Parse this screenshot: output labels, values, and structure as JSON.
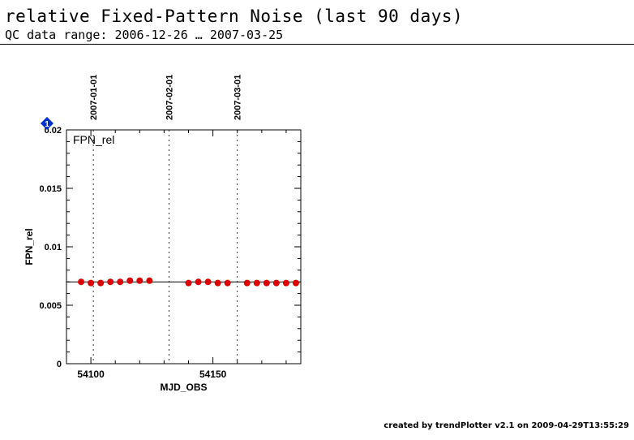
{
  "page": {
    "title": "relative Fixed-Pattern Noise (last 90 days)",
    "subtitle": "QC data range: 2006-12-26 … 2007-03-25",
    "footer": "created by trendPlotter v2.1 on 2009-04-29T13:55:29"
  },
  "colors": {
    "points": "#dd0000",
    "marker": "#0033cc",
    "axis": "#000000"
  },
  "chart_data": {
    "type": "scatter",
    "xlabel": "MJD_OBS",
    "ylabel": "FPN_rel",
    "panel_label": "FPN_rel",
    "xlim": [
      54090,
      54186
    ],
    "ylim": [
      0,
      0.02
    ],
    "x_ticks": [
      54100,
      54150
    ],
    "y_ticks": [
      {
        "value": 0,
        "label": "0"
      },
      {
        "value": 0.005,
        "label": "0.005"
      },
      {
        "value": 0.01,
        "label": "0.01"
      },
      {
        "value": 0.015,
        "label": "0.015"
      },
      {
        "value": 0.02,
        "label": "0.02"
      }
    ],
    "reference_line": 0.007,
    "date_markers": [
      {
        "x": 54101,
        "label": "2007-01-01"
      },
      {
        "x": 54132,
        "label": "2007-02-01"
      },
      {
        "x": 54160,
        "label": "2007-03-01"
      }
    ],
    "outlier_marker": {
      "label": "1"
    },
    "series": [
      {
        "x": [
          54096,
          54100,
          54104,
          54108,
          54112,
          54116,
          54120,
          54124,
          54140,
          54144,
          54148,
          54152,
          54156,
          54164,
          54168,
          54172,
          54176,
          54180,
          54184
        ],
        "y": [
          0.007,
          0.0069,
          0.0069,
          0.007,
          0.007,
          0.0071,
          0.0071,
          0.0071,
          0.0069,
          0.007,
          0.007,
          0.0069,
          0.0069,
          0.0069,
          0.0069,
          0.0069,
          0.0069,
          0.0069,
          0.0069
        ]
      }
    ]
  }
}
